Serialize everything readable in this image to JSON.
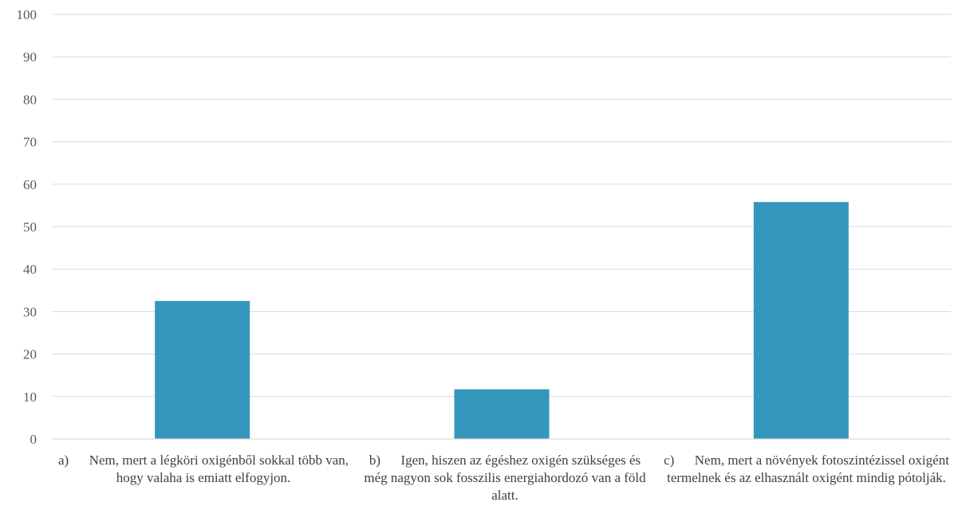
{
  "chart_data": {
    "type": "bar",
    "title": "",
    "xlabel": "",
    "ylabel": "",
    "ylim": [
      0,
      100
    ],
    "yticks": [
      "0",
      "10",
      "20",
      "30",
      "40",
      "50",
      "60",
      "70",
      "80",
      "90",
      "100"
    ],
    "grid": true,
    "legend": "none",
    "bar_color": "#3596bc",
    "categories": [
      "a)      Nem, mert a légköri oxigénből sokkal több van, hogy valaha is emiatt elfogyjon.",
      "b)      Igen, hiszen az égéshez oxigén szükséges és még nagyon sok fosszilis energiahordozó van a föld alatt.",
      "c)      Nem, mert a növények fotoszintézissel oxigént termelnek és az elhasznált oxigént mindig pótolják."
    ],
    "values": [
      32.5,
      11.7,
      55.8
    ]
  }
}
